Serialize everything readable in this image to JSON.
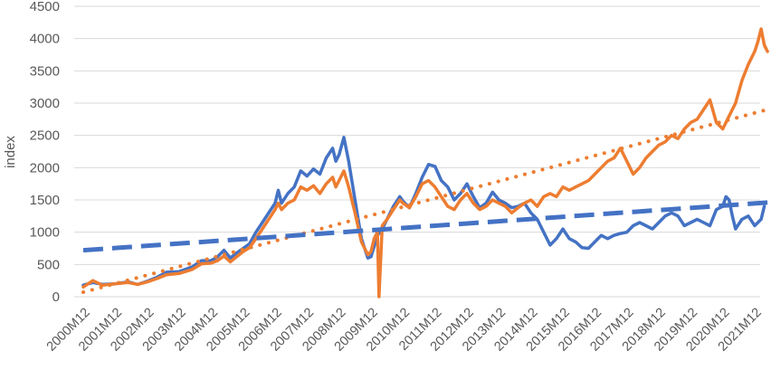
{
  "chart_data": {
    "type": "line",
    "title": "",
    "xlabel": "",
    "ylabel": "index",
    "ylim": [
      0,
      4500
    ],
    "yticks": [
      0,
      500,
      1000,
      1500,
      2000,
      2500,
      3000,
      3500,
      4000,
      4500
    ],
    "grid": "horizontal",
    "legend": "none",
    "categories": [
      "2000M12",
      "2001M12",
      "2002M12",
      "2003M12",
      "2004M12",
      "2005M12",
      "2006M12",
      "2007M12",
      "2008M12",
      "2009M12",
      "2010M12",
      "2011M12",
      "2012M12",
      "2013M12",
      "2014M12",
      "2015M12",
      "2016M12",
      "2017M12",
      "2018M12",
      "2019M12",
      "2020M12",
      "2021M12"
    ],
    "series": [
      {
        "color": "#4472C4",
        "style": "solid",
        "points": [
          [
            0,
            180
          ],
          [
            0.3,
            220
          ],
          [
            0.6,
            190
          ],
          [
            1,
            200
          ],
          [
            1.4,
            230
          ],
          [
            1.7,
            190
          ],
          [
            2,
            240
          ],
          [
            2.3,
            300
          ],
          [
            2.6,
            380
          ],
          [
            3,
            390
          ],
          [
            3.4,
            460
          ],
          [
            3.7,
            560
          ],
          [
            4,
            560
          ],
          [
            4.2,
            620
          ],
          [
            4.4,
            720
          ],
          [
            4.6,
            600
          ],
          [
            4.8,
            680
          ],
          [
            5,
            750
          ],
          [
            5.2,
            820
          ],
          [
            5.4,
            1000
          ],
          [
            5.6,
            1150
          ],
          [
            5.8,
            1300
          ],
          [
            6,
            1450
          ],
          [
            6.1,
            1650
          ],
          [
            6.2,
            1450
          ],
          [
            6.4,
            1600
          ],
          [
            6.6,
            1700
          ],
          [
            6.8,
            1950
          ],
          [
            7,
            1870
          ],
          [
            7.2,
            1980
          ],
          [
            7.4,
            1900
          ],
          [
            7.6,
            2150
          ],
          [
            7.8,
            2300
          ],
          [
            7.9,
            2100
          ],
          [
            8,
            2200
          ],
          [
            8.15,
            2470
          ],
          [
            8.3,
            2100
          ],
          [
            8.5,
            1500
          ],
          [
            8.7,
            900
          ],
          [
            8.9,
            600
          ],
          [
            9,
            620
          ],
          [
            9.2,
            950
          ],
          [
            9.35,
            1050
          ],
          [
            9.5,
            1200
          ],
          [
            9.7,
            1400
          ],
          [
            9.9,
            1550
          ],
          [
            10,
            1480
          ],
          [
            10.2,
            1380
          ],
          [
            10.4,
            1600
          ],
          [
            10.6,
            1850
          ],
          [
            10.8,
            2050
          ],
          [
            11,
            2020
          ],
          [
            11.2,
            1800
          ],
          [
            11.4,
            1700
          ],
          [
            11.6,
            1500
          ],
          [
            11.8,
            1600
          ],
          [
            12,
            1750
          ],
          [
            12.2,
            1550
          ],
          [
            12.4,
            1380
          ],
          [
            12.6,
            1450
          ],
          [
            12.8,
            1620
          ],
          [
            13,
            1500
          ],
          [
            13.2,
            1450
          ],
          [
            13.4,
            1380
          ],
          [
            13.6,
            1400
          ],
          [
            13.8,
            1450
          ],
          [
            14,
            1300
          ],
          [
            14.2,
            1200
          ],
          [
            14.4,
            1000
          ],
          [
            14.6,
            800
          ],
          [
            14.8,
            900
          ],
          [
            15,
            1050
          ],
          [
            15.2,
            900
          ],
          [
            15.4,
            850
          ],
          [
            15.6,
            760
          ],
          [
            15.8,
            750
          ],
          [
            16,
            850
          ],
          [
            16.2,
            950
          ],
          [
            16.4,
            900
          ],
          [
            16.6,
            950
          ],
          [
            16.8,
            980
          ],
          [
            17,
            1000
          ],
          [
            17.2,
            1100
          ],
          [
            17.4,
            1150
          ],
          [
            17.6,
            1100
          ],
          [
            17.8,
            1050
          ],
          [
            18,
            1150
          ],
          [
            18.2,
            1250
          ],
          [
            18.4,
            1300
          ],
          [
            18.6,
            1250
          ],
          [
            18.8,
            1100
          ],
          [
            19,
            1150
          ],
          [
            19.2,
            1200
          ],
          [
            19.4,
            1150
          ],
          [
            19.6,
            1100
          ],
          [
            19.8,
            1350
          ],
          [
            20,
            1400
          ],
          [
            20.1,
            1550
          ],
          [
            20.2,
            1500
          ],
          [
            20.3,
            1250
          ],
          [
            20.4,
            1050
          ],
          [
            20.6,
            1200
          ],
          [
            20.8,
            1250
          ],
          [
            21,
            1100
          ],
          [
            21.2,
            1200
          ],
          [
            21.3,
            1400
          ]
        ]
      },
      {
        "color": "#ED7D31",
        "style": "solid",
        "points": [
          [
            0,
            150
          ],
          [
            0.3,
            250
          ],
          [
            0.6,
            180
          ],
          [
            1,
            200
          ],
          [
            1.4,
            220
          ],
          [
            1.7,
            190
          ],
          [
            2,
            230
          ],
          [
            2.3,
            280
          ],
          [
            2.6,
            340
          ],
          [
            3,
            360
          ],
          [
            3.4,
            420
          ],
          [
            3.7,
            510
          ],
          [
            4,
            520
          ],
          [
            4.2,
            560
          ],
          [
            4.4,
            630
          ],
          [
            4.6,
            540
          ],
          [
            4.8,
            620
          ],
          [
            5,
            700
          ],
          [
            5.2,
            760
          ],
          [
            5.4,
            900
          ],
          [
            5.6,
            1050
          ],
          [
            5.8,
            1200
          ],
          [
            6,
            1350
          ],
          [
            6.1,
            1450
          ],
          [
            6.2,
            1350
          ],
          [
            6.4,
            1450
          ],
          [
            6.6,
            1500
          ],
          [
            6.8,
            1700
          ],
          [
            7,
            1650
          ],
          [
            7.2,
            1720
          ],
          [
            7.4,
            1600
          ],
          [
            7.6,
            1750
          ],
          [
            7.8,
            1850
          ],
          [
            7.9,
            1700
          ],
          [
            8,
            1800
          ],
          [
            8.15,
            1950
          ],
          [
            8.3,
            1700
          ],
          [
            8.5,
            1300
          ],
          [
            8.7,
            850
          ],
          [
            8.9,
            650
          ],
          [
            9,
            700
          ],
          [
            9.1,
            900
          ],
          [
            9.2,
            1000
          ],
          [
            9.25,
            0
          ],
          [
            9.35,
            1100
          ],
          [
            9.5,
            1200
          ],
          [
            9.7,
            1350
          ],
          [
            9.9,
            1500
          ],
          [
            10,
            1450
          ],
          [
            10.2,
            1380
          ],
          [
            10.4,
            1550
          ],
          [
            10.6,
            1750
          ],
          [
            10.8,
            1800
          ],
          [
            11,
            1700
          ],
          [
            11.2,
            1550
          ],
          [
            11.4,
            1400
          ],
          [
            11.6,
            1350
          ],
          [
            11.8,
            1500
          ],
          [
            12,
            1600
          ],
          [
            12.2,
            1450
          ],
          [
            12.4,
            1350
          ],
          [
            12.6,
            1400
          ],
          [
            12.8,
            1500
          ],
          [
            13,
            1450
          ],
          [
            13.2,
            1400
          ],
          [
            13.4,
            1300
          ],
          [
            13.6,
            1380
          ],
          [
            13.8,
            1450
          ],
          [
            14,
            1500
          ],
          [
            14.2,
            1400
          ],
          [
            14.4,
            1550
          ],
          [
            14.6,
            1600
          ],
          [
            14.8,
            1550
          ],
          [
            15,
            1700
          ],
          [
            15.2,
            1650
          ],
          [
            15.4,
            1700
          ],
          [
            15.6,
            1750
          ],
          [
            15.8,
            1800
          ],
          [
            16,
            1900
          ],
          [
            16.2,
            2000
          ],
          [
            16.4,
            2100
          ],
          [
            16.6,
            2150
          ],
          [
            16.8,
            2300
          ],
          [
            17,
            2100
          ],
          [
            17.2,
            1900
          ],
          [
            17.4,
            2000
          ],
          [
            17.6,
            2150
          ],
          [
            17.8,
            2250
          ],
          [
            18,
            2350
          ],
          [
            18.2,
            2400
          ],
          [
            18.4,
            2500
          ],
          [
            18.6,
            2450
          ],
          [
            18.8,
            2600
          ],
          [
            19,
            2700
          ],
          [
            19.2,
            2750
          ],
          [
            19.4,
            2900
          ],
          [
            19.6,
            3050
          ],
          [
            19.8,
            2700
          ],
          [
            20,
            2600
          ],
          [
            20.2,
            2800
          ],
          [
            20.4,
            3000
          ],
          [
            20.6,
            3350
          ],
          [
            20.8,
            3600
          ],
          [
            21,
            3800
          ],
          [
            21.1,
            3950
          ],
          [
            21.2,
            4150
          ],
          [
            21.3,
            3900
          ],
          [
            21.4,
            3800
          ]
        ]
      },
      {
        "color": "#ED7D31",
        "style": "dotted",
        "trendline": true,
        "points": [
          [
            0,
            70
          ],
          [
            21.4,
            2900
          ]
        ]
      },
      {
        "color": "#4472C4",
        "style": "dashed",
        "trendline": true,
        "points": [
          [
            0,
            720
          ],
          [
            21.4,
            1460
          ]
        ]
      }
    ]
  }
}
